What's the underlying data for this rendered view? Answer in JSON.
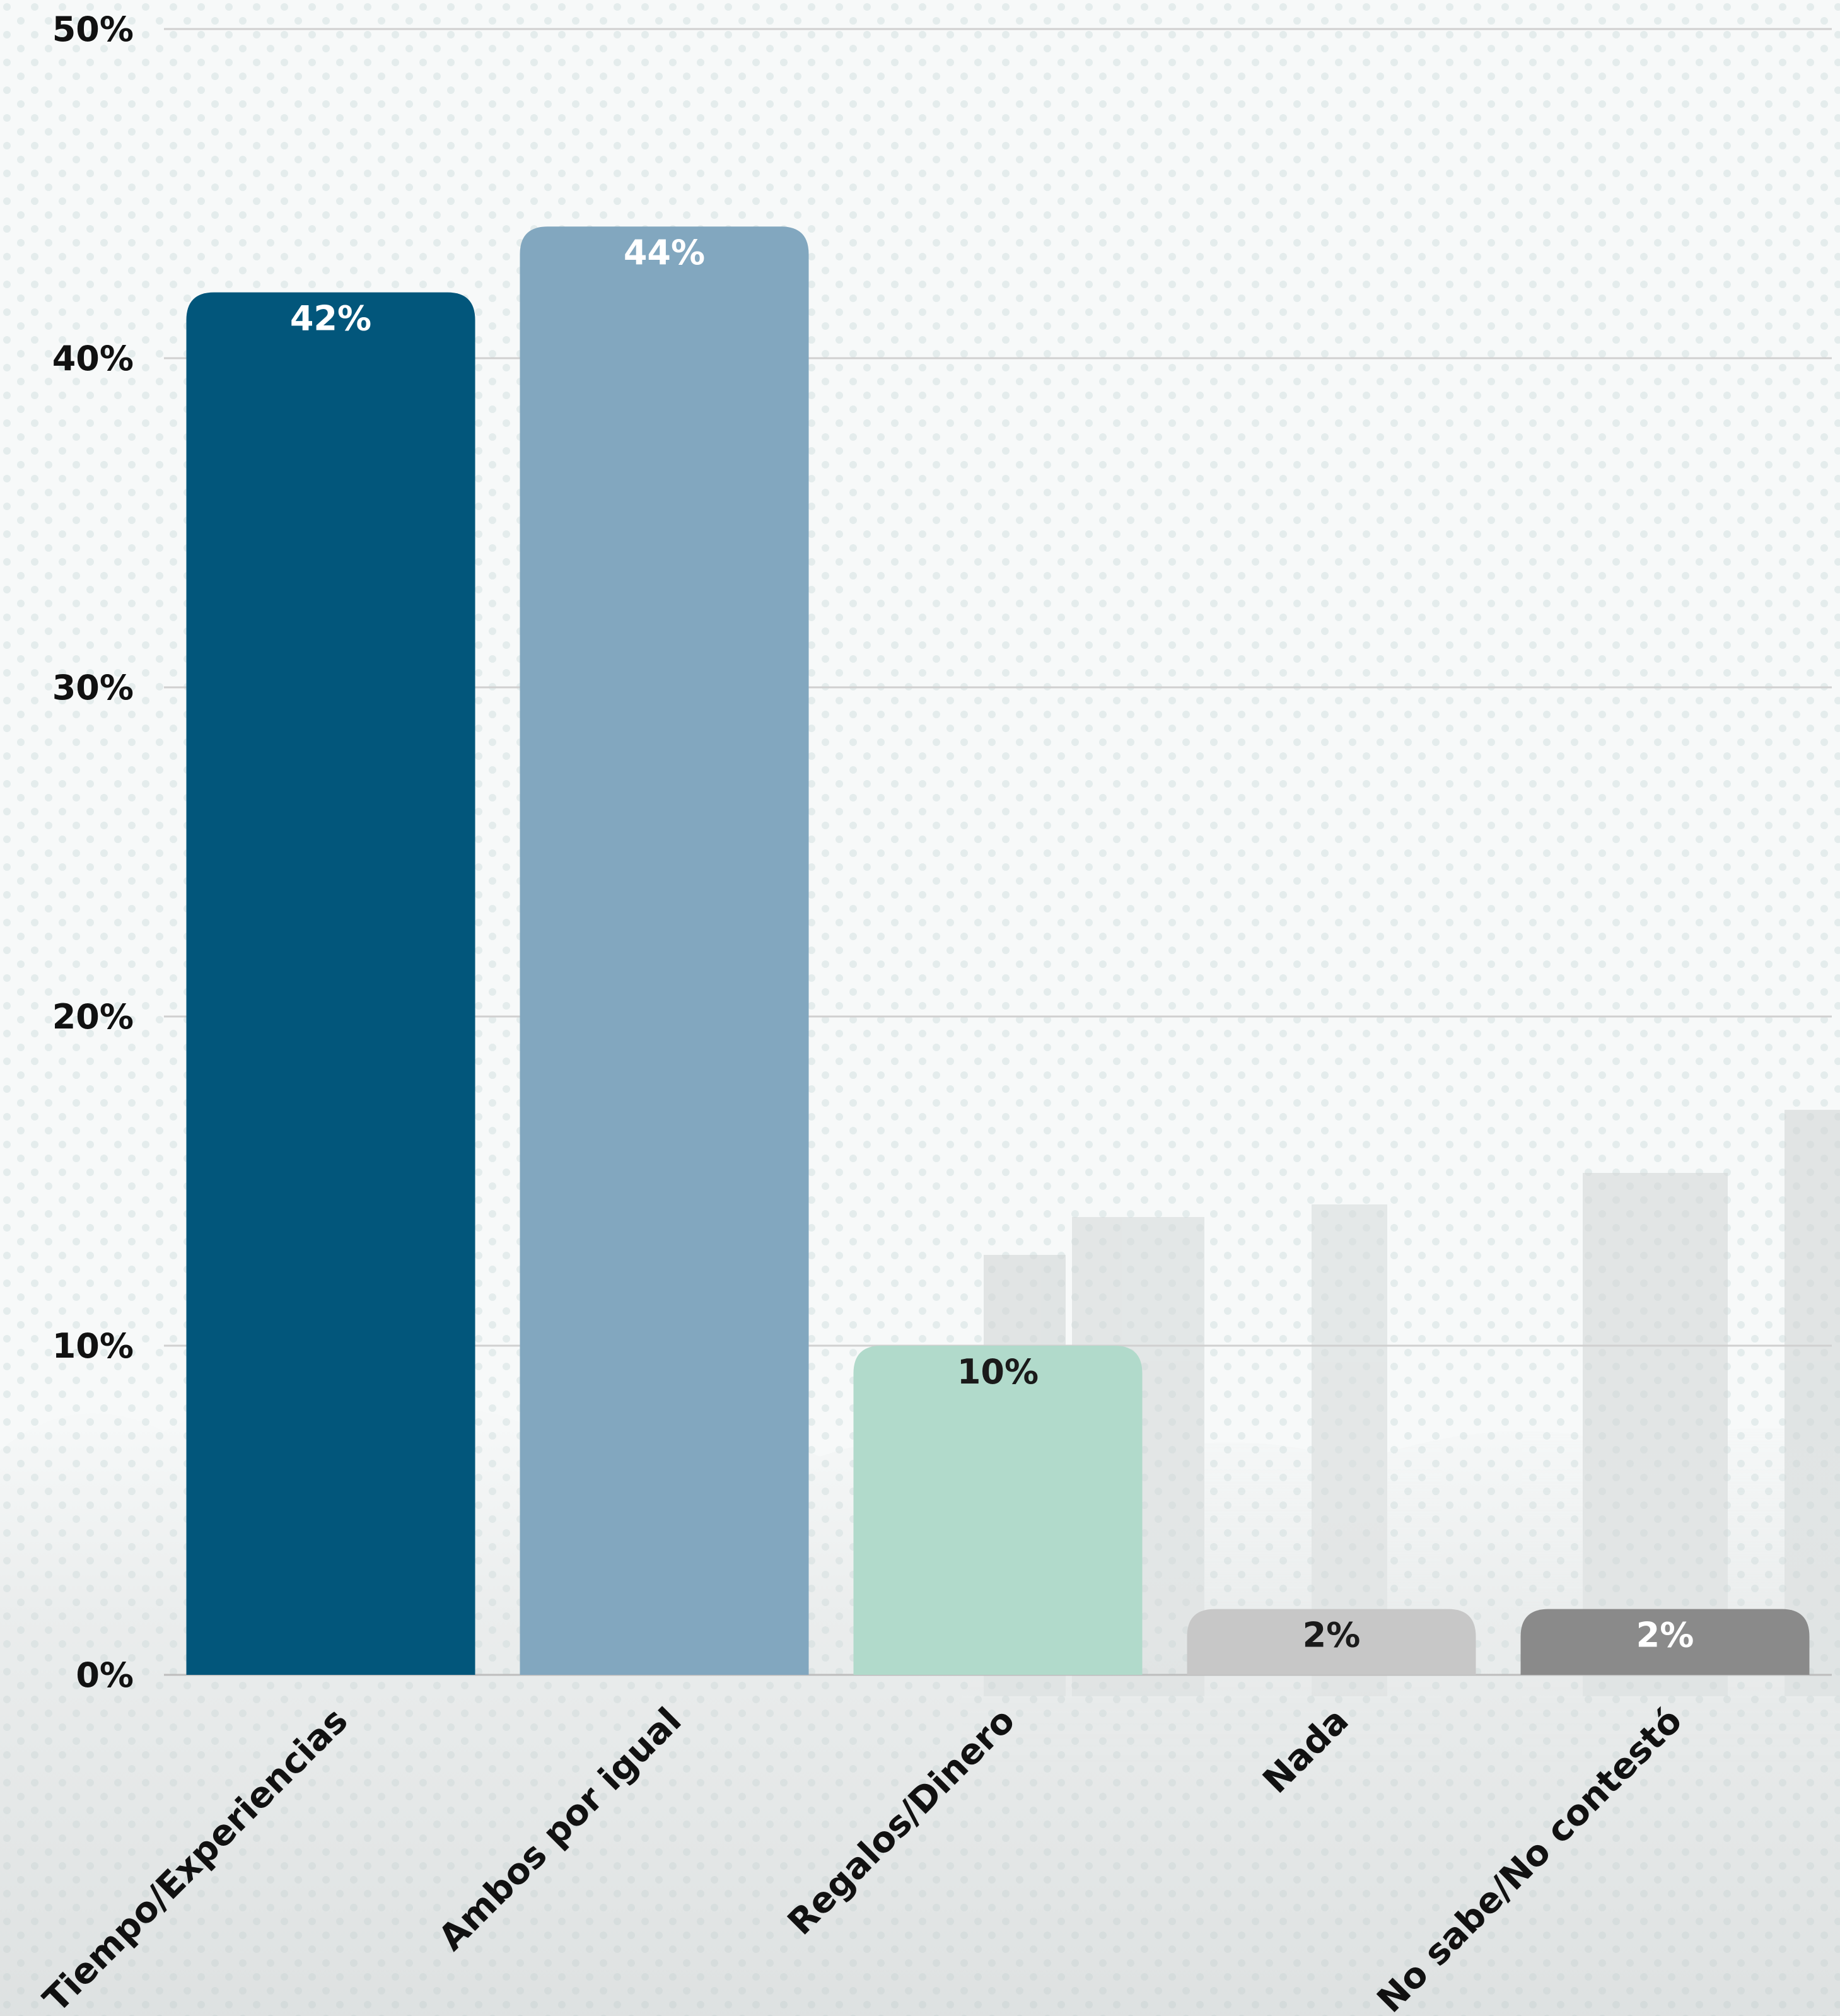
{
  "chart_data": {
    "type": "bar",
    "categories": [
      "Tiempo/Experiencias",
      "Ambos por igual",
      "Regalos/Dinero",
      "Nada",
      "No sabe/No contestó"
    ],
    "values": [
      42,
      44,
      10,
      2,
      2
    ],
    "value_labels": [
      "42%",
      "44%",
      "10%",
      "2%",
      "2%"
    ],
    "bar_colors": [
      "#02567b",
      "#82a7bf",
      "#b1dacb",
      "#c7c7c7",
      "#8a8a8a"
    ],
    "value_label_colors": [
      "#ffffff",
      "#ffffff",
      "#1a1a1a",
      "#1a1a1a",
      "#ffffff"
    ],
    "ylim": [
      0,
      50
    ],
    "yticks": [
      0,
      10,
      20,
      30,
      40,
      50
    ],
    "ytick_labels": [
      "0%",
      "10%",
      "20%",
      "30%",
      "40%",
      "50%"
    ],
    "title": "",
    "xlabel": "",
    "ylabel": "",
    "grid": true,
    "legend": "none"
  }
}
